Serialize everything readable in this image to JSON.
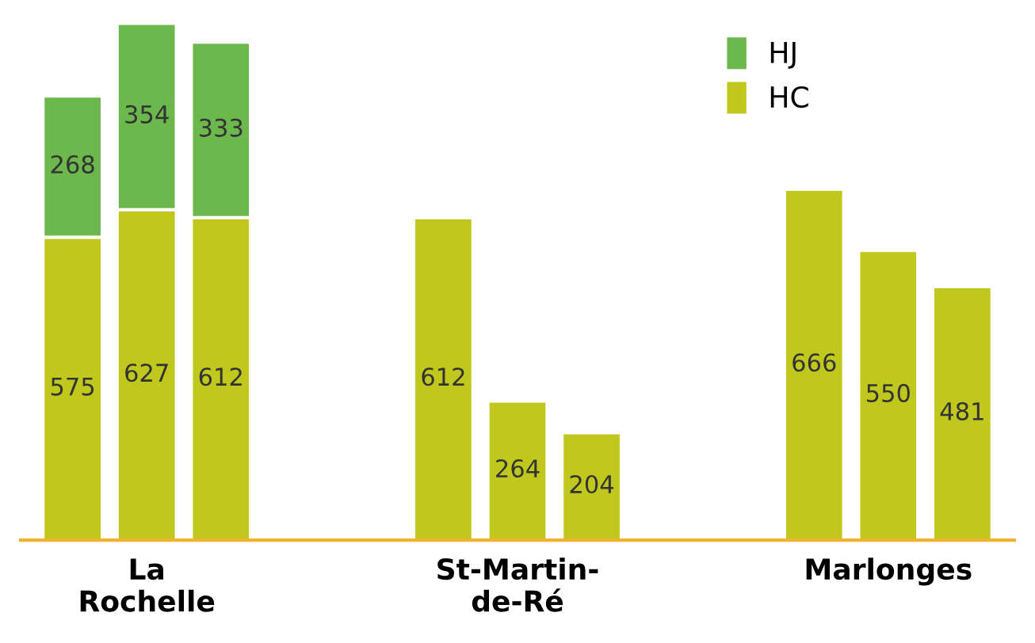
{
  "chart_data": {
    "type": "bar",
    "stacked": true,
    "data_labels": true,
    "legend": "top right",
    "grid": false,
    "categories": [
      null,
      "La\nRochelle",
      null,
      null,
      null,
      null,
      "St-Martin-\nde-Ré",
      null,
      null,
      null,
      null,
      "Marlonges",
      null
    ],
    "series": [
      {
        "name": "HC",
        "color": "#c0c81e",
        "values": [
          575,
          627,
          612,
          null,
          null,
          612,
          264,
          204,
          null,
          null,
          666,
          550,
          481
        ]
      },
      {
        "name": "HJ",
        "color": "#6cb84c",
        "values": [
          268,
          354,
          333,
          null,
          null,
          null,
          null,
          null,
          null,
          null,
          null,
          null,
          null
        ]
      }
    ]
  }
}
